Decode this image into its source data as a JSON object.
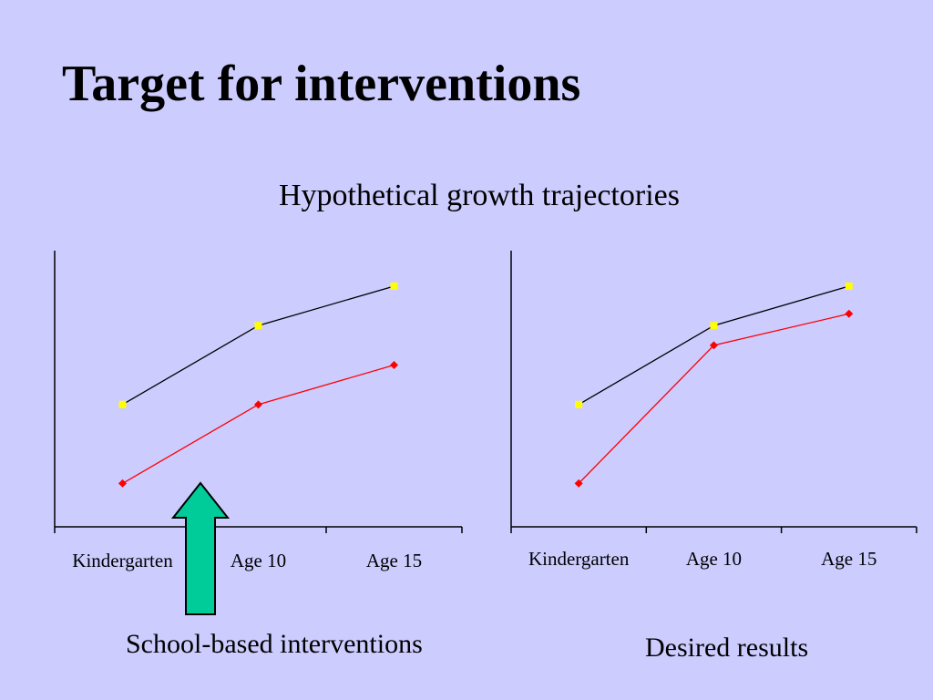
{
  "title": "Target for interventions",
  "subtitle": "Hypothetical growth trajectories",
  "captions": {
    "left": "School-based interventions",
    "right": "Desired results"
  },
  "colors": {
    "background": "#ccccff",
    "upper_series_line": "#000000",
    "upper_series_marker": "#ffff00",
    "lower_series": "#ff0000",
    "arrow_fill": "#00cc99"
  },
  "arrow_icon": "up-arrow",
  "chart_data": [
    {
      "type": "line",
      "categories": [
        "Kindergarten",
        "Age 10",
        "Age 15"
      ],
      "ylim": [
        0,
        7
      ],
      "grid": false,
      "series": [
        {
          "values": [
            3.1,
            5.1,
            6.1
          ],
          "color": "#000000",
          "marker_color": "#ffff00",
          "marker": "square"
        },
        {
          "values": [
            1.1,
            3.1,
            4.1
          ],
          "color": "#ff0000",
          "marker_color": "#ff0000",
          "marker": "diamond"
        }
      ]
    },
    {
      "type": "line",
      "categories": [
        "Kindergarten",
        "Age 10",
        "Age 15"
      ],
      "ylim": [
        0,
        7
      ],
      "grid": false,
      "series": [
        {
          "values": [
            3.1,
            5.1,
            6.1
          ],
          "color": "#000000",
          "marker_color": "#ffff00",
          "marker": "square"
        },
        {
          "values": [
            1.1,
            4.6,
            5.4
          ],
          "color": "#ff0000",
          "marker_color": "#ff0000",
          "marker": "diamond"
        }
      ]
    }
  ]
}
